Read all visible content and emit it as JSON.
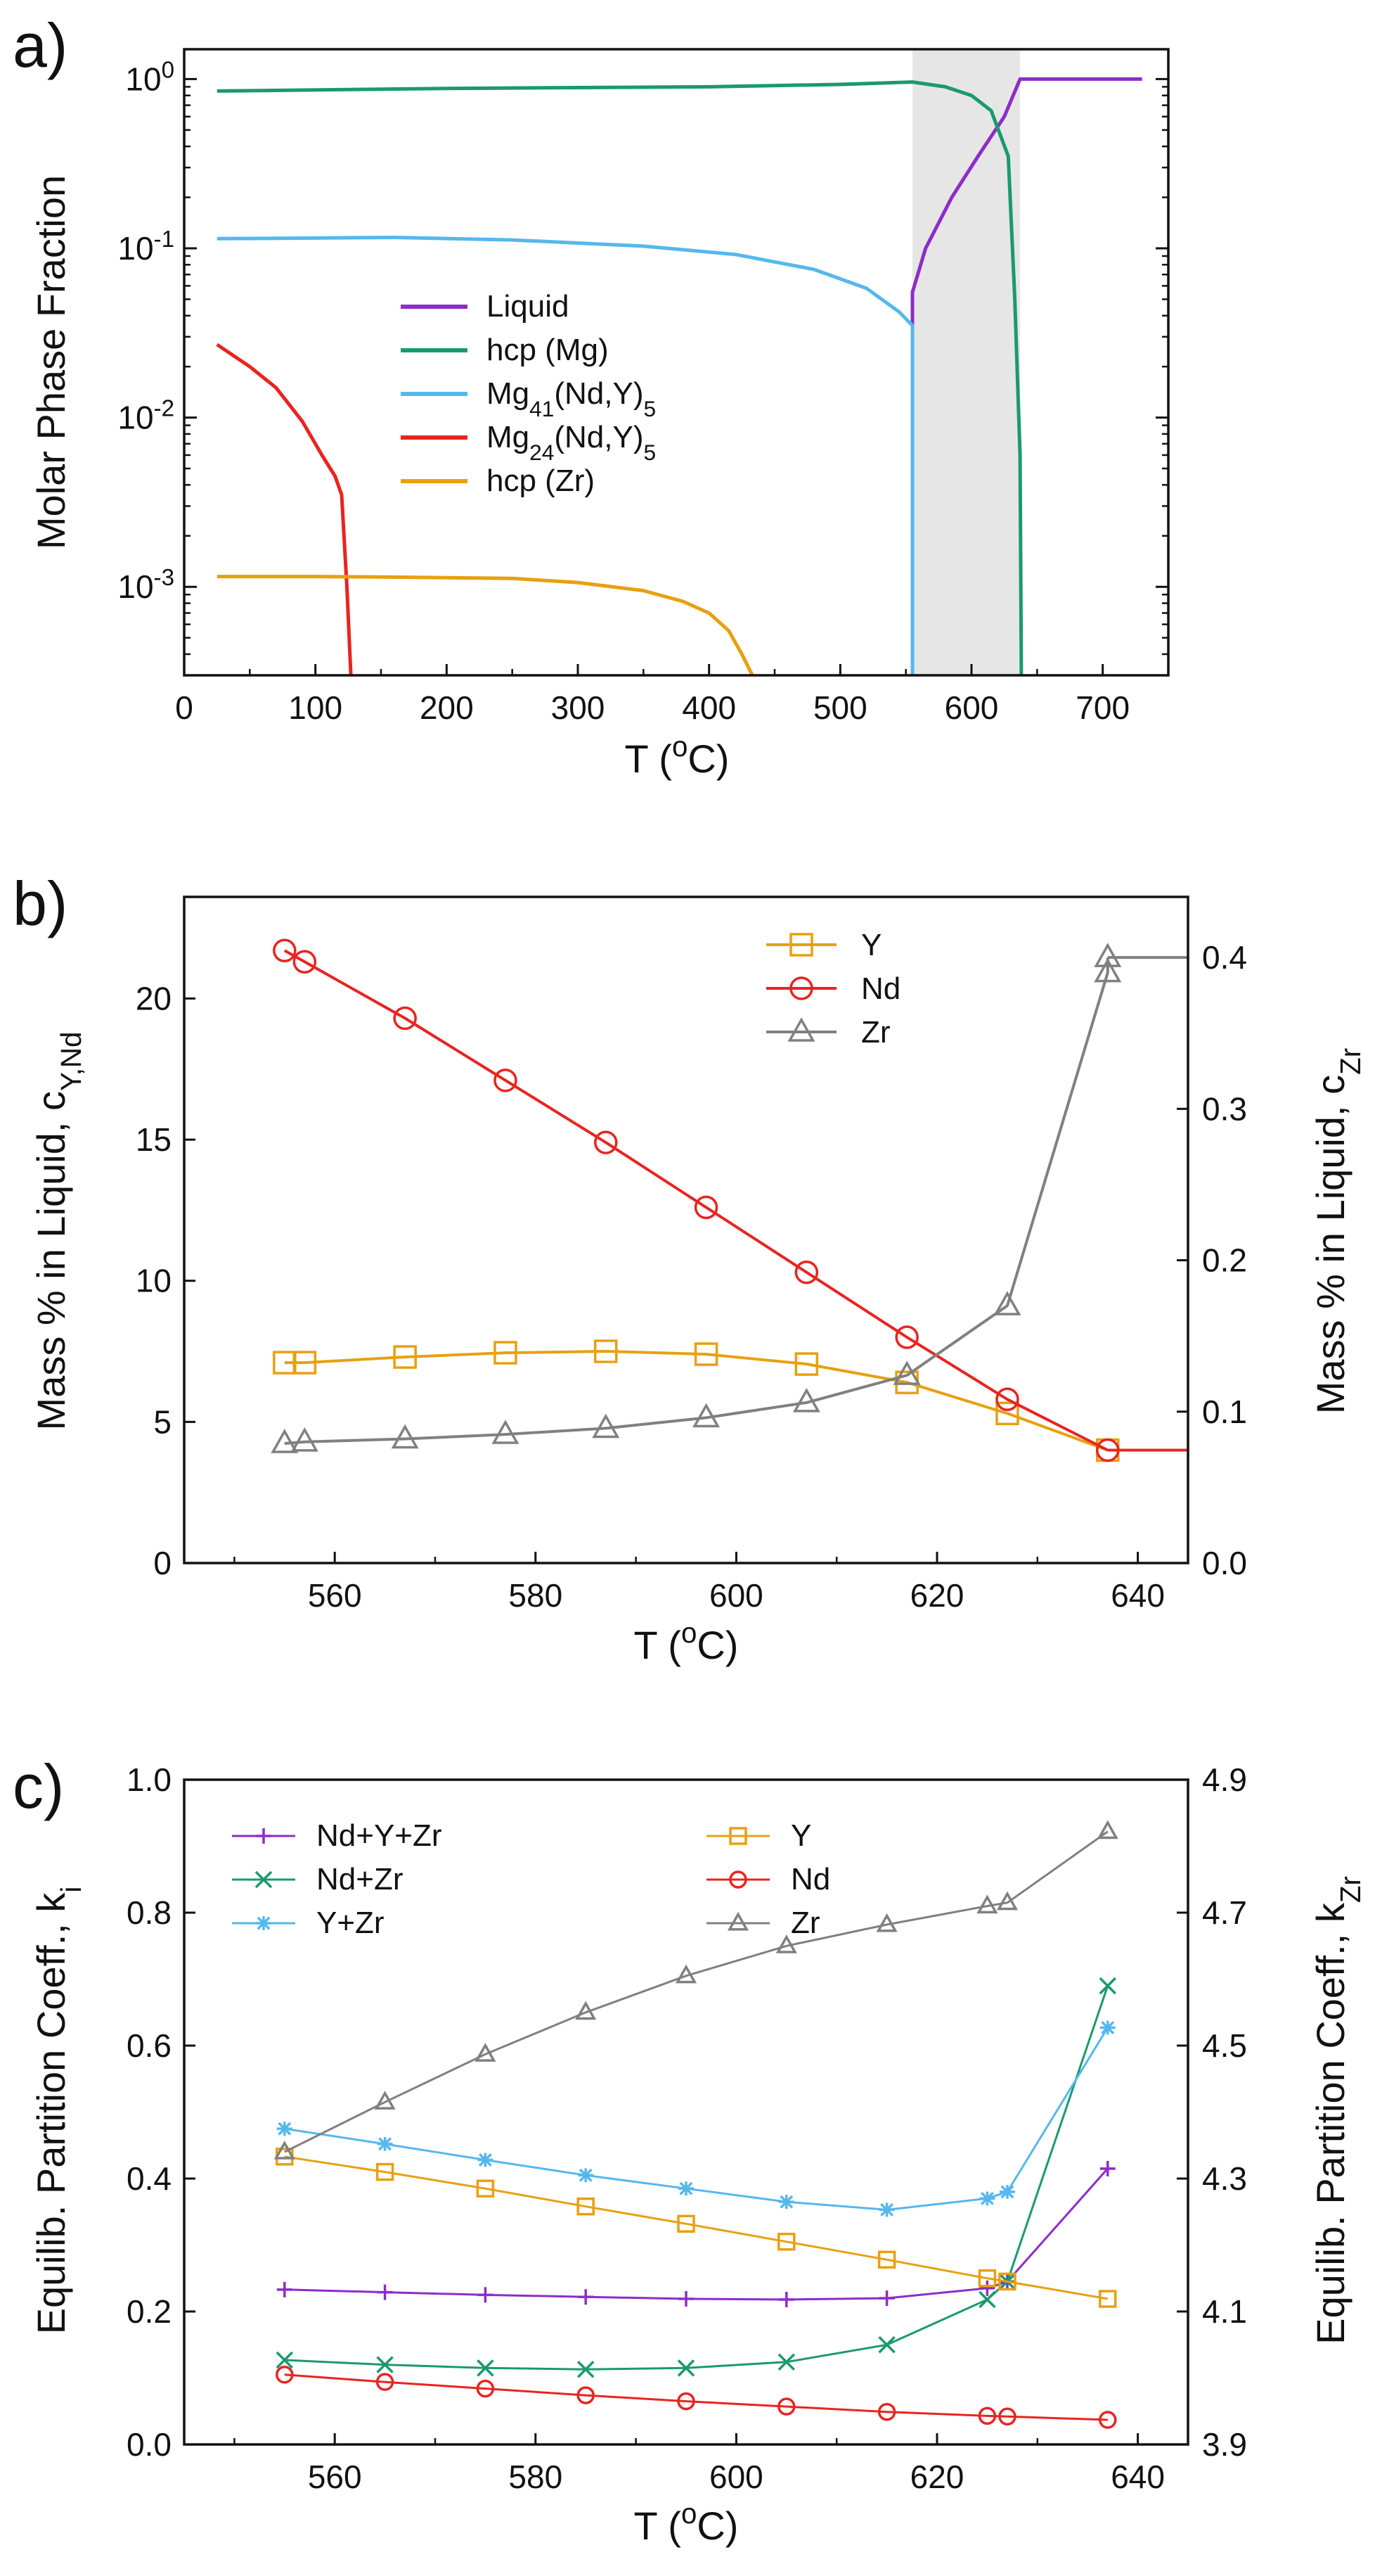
{
  "figure": {
    "panels": [
      {
        "label": "a)"
      },
      {
        "label": "b)"
      },
      {
        "label": "c)"
      }
    ]
  },
  "chart_data": [
    {
      "type": "line",
      "panel": "a)",
      "xlabel": "T (°C)",
      "ylabel": "Molar Phase Fraction",
      "xlim": [
        0,
        750
      ],
      "ylim": [
        0.0003,
        1.5
      ],
      "yscale": "log",
      "xticks": [
        0,
        100,
        200,
        300,
        400,
        500,
        600,
        700
      ],
      "yticks": [
        {
          "value": 1,
          "base": "10",
          "exp": "0"
        },
        {
          "value": 0.1,
          "base": "10",
          "exp": "-1"
        },
        {
          "value": 0.01,
          "base": "10",
          "exp": "-2"
        },
        {
          "value": 0.001,
          "base": "10",
          "exp": "-3"
        }
      ],
      "shaded_region": {
        "x": [
          555,
          637
        ],
        "color": "#e6e6e6"
      },
      "legend_position": "center",
      "series": [
        {
          "name": "Liquid",
          "label": [
            "Liquid"
          ],
          "color": "#8e2cc8",
          "x": [
            555,
            555,
            565,
            585,
            605,
            625,
            637,
            700,
            730
          ],
          "y": [
            0.035,
            0.055,
            0.1,
            0.2,
            0.35,
            0.6,
            1,
            1,
            1
          ]
        },
        {
          "name": "hcp (Mg)",
          "label": [
            "hcp (Mg)"
          ],
          "color": "#1a9a6c",
          "x": [
            25,
            200,
            400,
            500,
            555,
            580,
            600,
            615,
            628,
            633,
            637,
            638
          ],
          "y": [
            0.85,
            0.88,
            0.9,
            0.93,
            0.96,
            0.9,
            0.8,
            0.65,
            0.35,
            0.05,
            0.006,
            0.0003
          ]
        },
        {
          "name": "Mg41(Nd,Y)5",
          "label": [
            "Mg",
            "41",
            "(Nd,Y)",
            "5"
          ],
          "color": "#55b8ec",
          "x": [
            25,
            100,
            160,
            250,
            350,
            420,
            480,
            520,
            545,
            555,
            555
          ],
          "y": [
            0.114,
            0.115,
            0.116,
            0.112,
            0.103,
            0.092,
            0.075,
            0.058,
            0.042,
            0.035,
            0.0003
          ]
        },
        {
          "name": "Mg24(Nd,Y)5",
          "label": [
            "Mg",
            "24",
            "(Nd,Y)",
            "5"
          ],
          "color": "#e82420",
          "x": [
            25,
            50,
            70,
            90,
            105,
            115,
            120,
            124,
            127
          ],
          "y": [
            0.027,
            0.02,
            0.015,
            0.0095,
            0.006,
            0.0045,
            0.0035,
            0.001,
            0.0003
          ]
        },
        {
          "name": "hcp (Zr)",
          "label": [
            "hcp (Zr)"
          ],
          "color": "#e8a010",
          "x": [
            25,
            100,
            165,
            250,
            300,
            350,
            380,
            400,
            415,
            425,
            433
          ],
          "y": [
            0.00115,
            0.00115,
            0.00114,
            0.00112,
            0.00106,
            0.00095,
            0.00082,
            0.0007,
            0.00055,
            0.0004,
            0.0003
          ]
        }
      ]
    },
    {
      "type": "line",
      "panel": "b)",
      "xlabel": "T (°C)",
      "ylabel": [
        "Mass % in Liquid, c",
        "Y,Nd"
      ],
      "y2label": [
        "Mass % in Liquid, c",
        "Zr"
      ],
      "xlim": [
        545,
        645
      ],
      "ylim": [
        0,
        23.6
      ],
      "y2lim": [
        0,
        0.44
      ],
      "xticks": [
        560,
        580,
        600,
        620,
        640
      ],
      "yticks": [
        0,
        5,
        10,
        15,
        20
      ],
      "y2ticks": [
        0.0,
        0.1,
        0.2,
        0.3,
        0.4
      ],
      "y2ticklabels": [
        "0.0",
        "0.1",
        "0.2",
        "0.3",
        "0.4"
      ],
      "legend_position": "top-right",
      "series": [
        {
          "name": "Y",
          "label": [
            "Y"
          ],
          "color": "#e8a010",
          "marker": "square",
          "axis": "left",
          "x": [
            555,
            557,
            567,
            577,
            587,
            597,
            607,
            617,
            627,
            637
          ],
          "y": [
            7.1,
            7.1,
            7.3,
            7.45,
            7.5,
            7.4,
            7.05,
            6.4,
            5.3,
            4.0
          ],
          "tail": {
            "x": [
              637,
              645
            ],
            "y": [
              4.0,
              4.0
            ]
          }
        },
        {
          "name": "Nd",
          "label": [
            "Nd"
          ],
          "color": "#e82420",
          "marker": "circle",
          "axis": "left",
          "x": [
            555,
            557,
            567,
            577,
            587,
            597,
            607,
            617,
            627,
            637
          ],
          "y": [
            21.7,
            21.3,
            19.3,
            17.1,
            14.9,
            12.6,
            10.3,
            8.0,
            5.8,
            4.0
          ],
          "tail": {
            "x": [
              637,
              645
            ],
            "y": [
              4.0,
              4.0
            ]
          }
        },
        {
          "name": "Zr",
          "label": [
            "Zr"
          ],
          "color": "#808080",
          "marker": "triangle",
          "axis": "right",
          "x": [
            555,
            557,
            567,
            577,
            587,
            597,
            607,
            617,
            627,
            637,
            637
          ],
          "y": [
            0.079,
            0.08,
            0.082,
            0.085,
            0.089,
            0.096,
            0.106,
            0.124,
            0.17,
            0.39,
            0.4
          ],
          "tail": {
            "x": [
              637,
              645
            ],
            "y": [
              0.4,
              0.4
            ]
          }
        }
      ]
    },
    {
      "type": "line",
      "panel": "c)",
      "xlabel": "T (°C)",
      "ylabel": [
        "Equilib. Partition Coeff., k",
        "i"
      ],
      "y2label": [
        "Equilib. Partition Coeff., k",
        "Zr"
      ],
      "xlim": [
        545,
        645
      ],
      "ylim": [
        0,
        1.0
      ],
      "y2lim": [
        3.9,
        4.9
      ],
      "xticks": [
        560,
        580,
        600,
        620,
        640
      ],
      "yticks": [
        0.0,
        0.2,
        0.4,
        0.6,
        0.8,
        1.0
      ],
      "yticklabels": [
        "0.0",
        "0.2",
        "0.4",
        "0.6",
        "0.8",
        "1.0"
      ],
      "y2ticks": [
        3.9,
        4.1,
        4.3,
        4.5,
        4.7,
        4.9
      ],
      "y2ticklabels": [
        "3.9",
        "4.1",
        "4.3",
        "4.5",
        "4.7",
        "4.9"
      ],
      "legend_position": "top-left",
      "series": [
        {
          "name": "Nd+Y+Zr",
          "label": [
            "Nd+Y+Zr"
          ],
          "color": "#8e2cc8",
          "marker": "plus",
          "axis": "left",
          "x": [
            555,
            565,
            575,
            585,
            595,
            605,
            615,
            625,
            627,
            637
          ],
          "y": [
            0.233,
            0.229,
            0.225,
            0.222,
            0.219,
            0.218,
            0.22,
            0.235,
            0.245,
            0.415
          ]
        },
        {
          "name": "Nd+Zr",
          "label": [
            "Nd+Zr"
          ],
          "color": "#1a9a6c",
          "marker": "x",
          "axis": "left",
          "x": [
            555,
            565,
            575,
            585,
            595,
            605,
            615,
            625,
            627,
            637
          ],
          "y": [
            0.127,
            0.12,
            0.115,
            0.113,
            0.115,
            0.124,
            0.15,
            0.218,
            0.245,
            0.69
          ]
        },
        {
          "name": "Y+Zr",
          "label": [
            "Y+Zr"
          ],
          "color": "#55b8ec",
          "marker": "star",
          "axis": "left",
          "x": [
            555,
            565,
            575,
            585,
            595,
            605,
            615,
            625,
            627,
            637
          ],
          "y": [
            0.475,
            0.452,
            0.428,
            0.405,
            0.385,
            0.365,
            0.353,
            0.37,
            0.38,
            0.627
          ]
        },
        {
          "name": "Y",
          "label": [
            "Y"
          ],
          "color": "#e8a010",
          "marker": "square",
          "axis": "left",
          "x": [
            555,
            565,
            575,
            585,
            595,
            605,
            615,
            625,
            627,
            637
          ],
          "y": [
            0.433,
            0.41,
            0.385,
            0.358,
            0.332,
            0.305,
            0.278,
            0.25,
            0.245,
            0.219
          ]
        },
        {
          "name": "Nd",
          "label": [
            "Nd"
          ],
          "color": "#e82420",
          "marker": "circle",
          "axis": "left",
          "x": [
            555,
            565,
            575,
            585,
            595,
            605,
            615,
            625,
            627,
            637
          ],
          "y": [
            0.105,
            0.094,
            0.084,
            0.074,
            0.065,
            0.057,
            0.049,
            0.043,
            0.042,
            0.037
          ]
        },
        {
          "name": "Zr",
          "label": [
            "Zr"
          ],
          "color": "#808080",
          "marker": "triangle",
          "axis": "right",
          "x": [
            555,
            565,
            575,
            585,
            595,
            605,
            615,
            625,
            627,
            637
          ],
          "y": [
            4.34,
            4.415,
            4.487,
            4.55,
            4.605,
            4.65,
            4.682,
            4.71,
            4.715,
            4.822
          ]
        }
      ]
    }
  ]
}
